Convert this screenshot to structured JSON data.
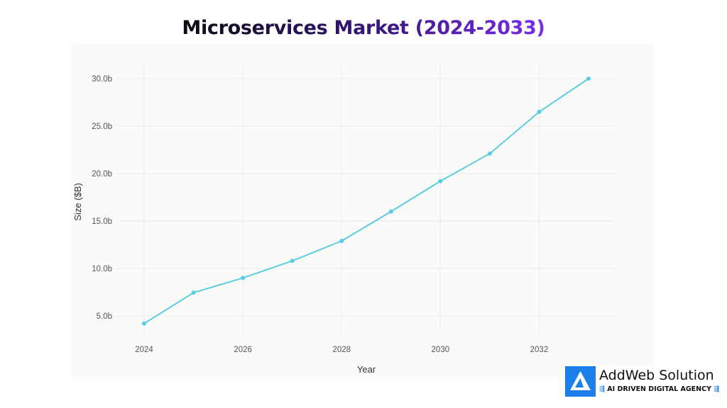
{
  "chart_data": {
    "type": "line",
    "title": "Microservices Market (2024-2033)",
    "xlabel": "Year",
    "ylabel": "Size ($B)",
    "x": [
      2024,
      2025,
      2026,
      2027,
      2028,
      2029,
      2030,
      2031,
      2032,
      2033
    ],
    "series": [
      {
        "values": [
          4.2,
          7.45,
          9.0,
          10.8,
          12.9,
          16.0,
          19.2,
          22.1,
          26.5,
          30.0
        ],
        "color": "#5bcde0"
      }
    ],
    "xticks": [
      "2024",
      "2026",
      "2028",
      "2030",
      "2032"
    ],
    "yticks": [
      "5.0b",
      "10.0b",
      "15.0b",
      "20.0b",
      "25.0b",
      "30.0b"
    ],
    "xlim": [
      2023.5,
      2033.6
    ],
    "ylim": [
      3,
      31
    ],
    "grid": true,
    "legend": "none"
  },
  "logo": {
    "name": "AddWeb Solution",
    "tagline": "AI DRIVEN DIGITAL AGENCY",
    "color": "#1a7fe8"
  }
}
